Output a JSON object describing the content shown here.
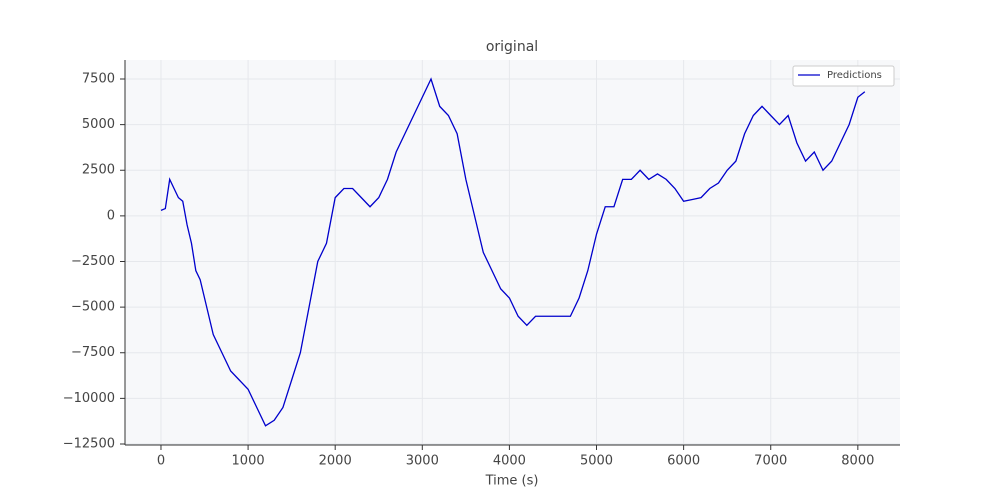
{
  "chart_data": {
    "type": "line",
    "title": "original",
    "xlabel": "Time (s)",
    "x": [
      0,
      50,
      100,
      150,
      200,
      250,
      300,
      350,
      400,
      450,
      500,
      550,
      600,
      700,
      800,
      900,
      1000,
      1100,
      1200,
      1300,
      1400,
      1500,
      1600,
      1700,
      1800,
      1900,
      2000,
      2100,
      2200,
      2300,
      2400,
      2500,
      2600,
      2700,
      2800,
      2900,
      3000,
      3100,
      3200,
      3300,
      3400,
      3500,
      3600,
      3700,
      3800,
      3900,
      4000,
      4100,
      4200,
      4300,
      4400,
      4500,
      4600,
      4700,
      4800,
      4900,
      5000,
      5100,
      5200,
      5300,
      5400,
      5500,
      5600,
      5700,
      5800,
      5900,
      6000,
      6100,
      6200,
      6300,
      6400,
      6500,
      6600,
      6700,
      6800,
      6900,
      7000,
      7100,
      7200,
      7300,
      7400,
      7500,
      7600,
      7700,
      7800,
      7900,
      8000,
      8080
    ],
    "series": [
      {
        "name": "Predictions",
        "color": "#0000cc",
        "values": [
          300,
          400,
          2000,
          1500,
          1000,
          800,
          -500,
          -1500,
          -3000,
          -3500,
          -4500,
          -5500,
          -6500,
          -7500,
          -8500,
          -9000,
          -9500,
          -10500,
          -11500,
          -11200,
          -10500,
          -9000,
          -7500,
          -5000,
          -2500,
          -1500,
          1000,
          1500,
          1500,
          1000,
          500,
          1000,
          2000,
          3500,
          4500,
          5500,
          6500,
          7500,
          6000,
          5500,
          4500,
          2000,
          0,
          -2000,
          -3000,
          -4000,
          -4500,
          -5500,
          -6000,
          -5500,
          -5500,
          -5500,
          -5500,
          -5500,
          -4500,
          -3000,
          -1000,
          500,
          500,
          2000,
          2000,
          2500,
          2000,
          2300,
          2000,
          1500,
          800,
          900,
          1000,
          1500,
          1800,
          2500,
          3000,
          4500,
          5500,
          6000,
          5500,
          5000,
          5500,
          4000,
          3000,
          3500,
          2500,
          3000,
          4000,
          5000,
          6500,
          6800
        ]
      }
    ],
    "xlim": [
      -413,
      8484
    ],
    "xticks": [
      0,
      1000,
      2000,
      3000,
      4000,
      5000,
      6000,
      7000,
      8000
    ],
    "ylim": [
      -12555,
      8541
    ],
    "yticks": [
      {
        "value": -12500,
        "label": "−12500"
      },
      {
        "value": -10000,
        "label": "−10000"
      },
      {
        "value": -7500,
        "label": "−7500"
      },
      {
        "value": -5000,
        "label": "−5000"
      },
      {
        "value": -2500,
        "label": "−2500"
      },
      0,
      2500,
      5000,
      7500
    ],
    "grid": true,
    "legend": "upper right"
  }
}
